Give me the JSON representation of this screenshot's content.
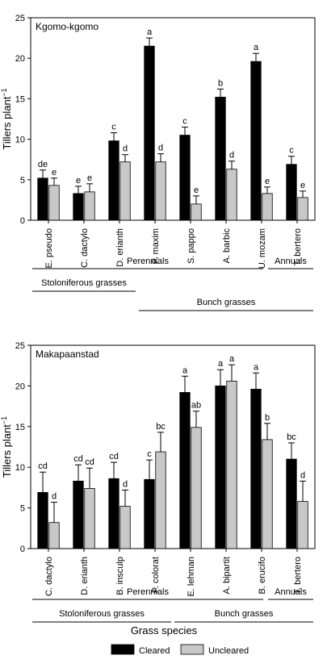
{
  "chart_data": [
    {
      "type": "bar",
      "panel_title": "Kgomo-kgomo",
      "ylabel": "Tillers plant",
      "ylabel_superscript": "−1",
      "ylim": [
        0,
        25
      ],
      "yticks": [
        "0",
        "5",
        "10",
        "15",
        "20",
        "25"
      ],
      "categories": [
        "E. pseudo",
        "C. dactylo",
        "D. erianth",
        "P. maxim",
        "S. pappo",
        "A. barbic",
        "U. mozam",
        "T. bertero"
      ],
      "series": [
        {
          "name": "Cleared",
          "color": "#000000",
          "values": [
            5.2,
            3.3,
            9.8,
            21.5,
            10.5,
            15.2,
            19.6,
            6.9
          ],
          "errors": [
            1.0,
            0.9,
            1.0,
            1.0,
            1.0,
            1.0,
            1.0,
            1.0
          ],
          "labels": [
            "de",
            "e",
            "c",
            "a",
            "c",
            "b",
            "a",
            "c"
          ]
        },
        {
          "name": "Uncleared",
          "color": "#c8c8c8",
          "values": [
            4.3,
            3.5,
            7.2,
            7.2,
            2.0,
            6.3,
            3.3,
            2.8
          ],
          "errors": [
            0.9,
            1.0,
            0.9,
            1.0,
            1.0,
            1.0,
            0.8,
            0.8
          ],
          "labels": [
            "e",
            "e",
            "d",
            "d",
            "e",
            "d",
            "e",
            "e"
          ]
        }
      ],
      "groupings": [
        {
          "label": "Perennials",
          "from": 0,
          "to": 6
        },
        {
          "label": "Annuals",
          "from": 7,
          "to": 7
        },
        {
          "label": "Stoloniferous grasses",
          "from": 0,
          "to": 2
        },
        {
          "label": "Bunch grasses",
          "from": 3,
          "to": 7
        }
      ]
    },
    {
      "type": "bar",
      "panel_title": "Makapaanstad",
      "ylabel": "Tillers plant",
      "ylabel_superscript": "−1",
      "ylim": [
        0,
        25
      ],
      "yticks": [
        "0",
        "5",
        "10",
        "15",
        "20",
        "25"
      ],
      "categories": [
        "C. dactylo",
        "D. erianth",
        "B. insculp",
        "P. colorat",
        "E. lehman",
        "A. bipartit",
        "B. erucifo",
        "T. bertero"
      ],
      "series": [
        {
          "name": "Cleared",
          "color": "#000000",
          "values": [
            6.9,
            8.3,
            8.6,
            8.5,
            19.2,
            20.0,
            19.6,
            11.0
          ],
          "errors": [
            2.5,
            2.0,
            2.0,
            2.4,
            2.0,
            2.0,
            2.0,
            2.0
          ],
          "labels": [
            "cd",
            "cd",
            "cd",
            "c",
            "a",
            "a",
            "a",
            "bc"
          ]
        },
        {
          "name": "Uncleared",
          "color": "#c8c8c8",
          "values": [
            3.2,
            7.4,
            5.2,
            11.9,
            14.9,
            20.6,
            13.4,
            5.8
          ],
          "errors": [
            2.5,
            2.5,
            2.0,
            2.4,
            2.0,
            2.0,
            2.0,
            2.5
          ],
          "labels": [
            "d",
            "cd",
            "d",
            "bc",
            "ab",
            "a",
            "b",
            "d"
          ]
        }
      ],
      "groupings": [
        {
          "label": "Perennials",
          "from": 0,
          "to": 6
        },
        {
          "label": "Annuals",
          "from": 7,
          "to": 7
        },
        {
          "label": "Stoloniferous grasses",
          "from": 0,
          "to": 3
        },
        {
          "label": "Bunch grasses",
          "from": 4,
          "to": 7
        }
      ]
    }
  ],
  "xlabel": "Grass species",
  "legend": {
    "placement": "bottom",
    "items": [
      {
        "label": "Cleared",
        "color": "#000000"
      },
      {
        "label": "Uncleared",
        "color": "#c8c8c8"
      }
    ]
  }
}
